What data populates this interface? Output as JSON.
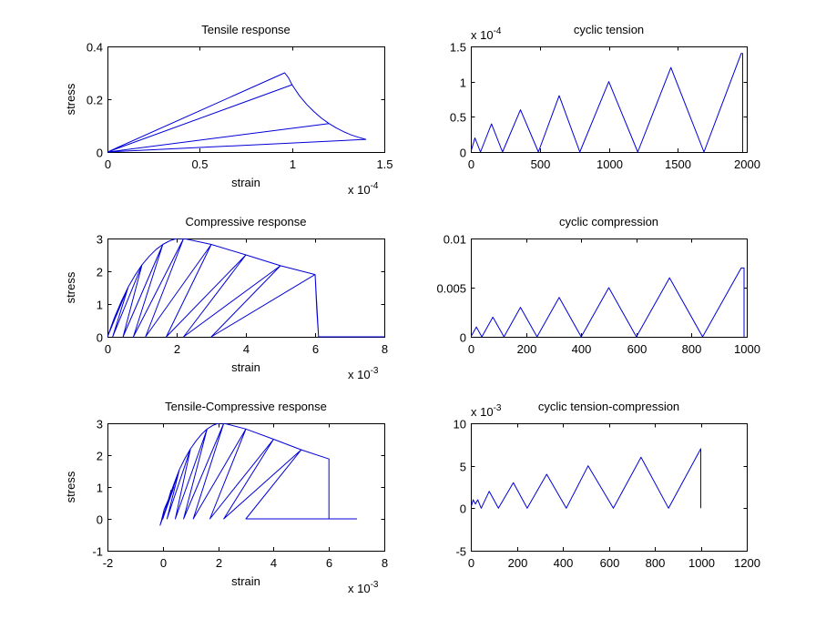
{
  "chart_data": [
    {
      "type": "line",
      "title": "Tensile response",
      "xlabel": "strain",
      "ylabel": "stress",
      "x_scale_label": "x 10",
      "x_scale_exp": "-4",
      "xlim": [
        0,
        1.5
      ],
      "ylim": [
        0,
        0.4
      ],
      "xticks": [
        0,
        0.5,
        1,
        1.5
      ],
      "xtick_labels": [
        "0",
        "0.5",
        "1",
        "1.5"
      ],
      "yticks": [
        0,
        0.2,
        0.4
      ],
      "ytick_labels": [
        "0",
        "0.2",
        "0.4"
      ],
      "series": [
        {
          "x": [
            0,
            0.96,
            0.98,
            1.0,
            1.04,
            1.08,
            1.12,
            1.16,
            1.2,
            1.24,
            1.28,
            1.32,
            1.36,
            1.4,
            0,
            1.0,
            0,
            1.2,
            0,
            1.4,
            0
          ],
          "y": [
            0,
            0.3,
            0.282,
            0.255,
            0.213,
            0.18,
            0.152,
            0.128,
            0.108,
            0.091,
            0.077,
            0.065,
            0.056,
            0.048,
            0,
            0.255,
            0,
            0.108,
            0,
            0.048,
            0
          ]
        }
      ]
    },
    {
      "type": "line",
      "title": "cyclic tension",
      "xlabel": "",
      "ylabel": "",
      "y_scale_label": "x 10",
      "y_scale_exp": "-4",
      "xlim": [
        0,
        2000
      ],
      "ylim": [
        0,
        1.5
      ],
      "xticks": [
        0,
        500,
        1000,
        1500,
        2000
      ],
      "xtick_labels": [
        "0",
        "500",
        "1000",
        "1500",
        "2000"
      ],
      "yticks": [
        0,
        0.5,
        1,
        1.5
      ],
      "ytick_labels": [
        "0",
        "0.5",
        "1",
        "1.5"
      ],
      "series": [
        {
          "x": [
            0,
            30,
            70,
            150,
            230,
            360,
            490,
            640,
            790,
            1000,
            1210,
            1450,
            1690,
            1960,
            1970,
            1970
          ],
          "y": [
            0,
            0.2,
            0,
            0.4,
            0,
            0.6,
            0,
            0.8,
            0,
            1.0,
            0,
            1.2,
            0,
            1.4,
            1.4,
            0
          ]
        }
      ]
    },
    {
      "type": "line",
      "title": "Compressive response",
      "xlabel": "strain",
      "ylabel": "stress",
      "x_scale_label": "x 10",
      "x_scale_exp": "-3",
      "xlim": [
        0,
        8
      ],
      "ylim": [
        0,
        3
      ],
      "xticks": [
        0,
        2,
        4,
        6,
        8
      ],
      "xtick_labels": [
        "0",
        "2",
        "4",
        "6",
        "8"
      ],
      "yticks": [
        0,
        1,
        2,
        3
      ],
      "ytick_labels": [
        "0",
        "1",
        "2",
        "3"
      ],
      "series": [
        {
          "x": [
            0,
            0.2,
            0.4,
            0.6,
            0.8,
            1.0,
            1.2,
            1.4,
            1.6,
            1.8,
            2.0,
            2.2,
            3.0,
            4.0,
            5.0,
            6.0,
            6.05,
            6.1,
            8.0,
            6.1,
            6.0,
            3.0,
            5.0,
            2.2,
            4.0,
            1.7,
            3.0,
            1.1,
            2.2,
            0.75,
            1.6,
            0.45,
            1.0,
            0.15,
            0.6,
            0
          ],
          "y": [
            0,
            0.58,
            1.08,
            1.52,
            1.88,
            2.2,
            2.45,
            2.66,
            2.82,
            2.93,
            3.0,
            3.0,
            2.82,
            2.5,
            2.17,
            1.9,
            0.8,
            0,
            0,
            0,
            1.9,
            0,
            2.17,
            0,
            2.5,
            0,
            2.82,
            0,
            3.0,
            0,
            2.82,
            0,
            2.2,
            0,
            1.52,
            0
          ]
        }
      ]
    },
    {
      "type": "line",
      "title": "cyclic compression",
      "xlabel": "",
      "ylabel": "",
      "xlim": [
        0,
        1000
      ],
      "ylim": [
        0,
        0.01
      ],
      "xticks": [
        0,
        200,
        400,
        600,
        800,
        1000
      ],
      "xtick_labels": [
        "0",
        "200",
        "400",
        "600",
        "800",
        "1000"
      ],
      "yticks": [
        0,
        0.005,
        0.01
      ],
      "ytick_labels": [
        "0",
        "0.005",
        "0.01"
      ],
      "series": [
        {
          "x": [
            0,
            20,
            40,
            80,
            120,
            180,
            240,
            320,
            400,
            500,
            600,
            720,
            840,
            980,
            990,
            990
          ],
          "y": [
            0,
            0.001,
            0,
            0.002,
            0,
            0.003,
            0,
            0.004,
            0,
            0.005,
            0,
            0.006,
            0,
            0.007,
            0.007,
            0
          ]
        }
      ]
    },
    {
      "type": "line",
      "title": "Tensile-Compressive response",
      "xlabel": "strain",
      "ylabel": "stress",
      "x_scale_label": "x 10",
      "x_scale_exp": "-3",
      "xlim": [
        -2,
        8
      ],
      "ylim": [
        -1,
        3
      ],
      "xticks": [
        -2,
        0,
        2,
        4,
        6,
        8
      ],
      "xtick_labels": [
        "-2",
        "0",
        "2",
        "4",
        "6",
        "8"
      ],
      "yticks": [
        -1,
        0,
        1,
        2,
        3
      ],
      "ytick_labels": [
        "-1",
        "0",
        "1",
        "2",
        "3"
      ],
      "series": [
        {
          "x": [
            -0.1,
            -0.05,
            0.05,
            0.2,
            0.4,
            0.6,
            0.8,
            1.0,
            1.2,
            1.4,
            1.6,
            1.8,
            2.0,
            2.2,
            3.0,
            4.0,
            5.0,
            6.0,
            6.0,
            7.0,
            6.0,
            3.0,
            5.0,
            2.2,
            4.0,
            1.7,
            3.0,
            1.1,
            2.2,
            0.75,
            1.6,
            0.45,
            1.0,
            0.15,
            0.6,
            0,
            0.25,
            -0.1,
            -0.1,
            0.4,
            0.08,
            0.3,
            0
          ],
          "y": [
            -0.2,
            -0.05,
            0.3,
            0.6,
            1.1,
            1.55,
            1.9,
            2.2,
            2.45,
            2.66,
            2.82,
            2.93,
            3.0,
            3.0,
            2.82,
            2.5,
            2.17,
            1.88,
            0,
            0,
            0,
            0,
            2.17,
            0,
            2.5,
            0,
            2.82,
            0,
            3.0,
            0,
            2.82,
            0,
            2.2,
            0,
            1.55,
            0,
            0.7,
            -0.2,
            -0.2,
            1.0,
            0.2,
            0.9,
            0
          ]
        }
      ]
    },
    {
      "type": "line",
      "title": "cyclic tension-compression",
      "xlabel": "",
      "ylabel": "",
      "y_scale_label": "x 10",
      "y_scale_exp": "-3",
      "xlim": [
        0,
        1200
      ],
      "ylim": [
        -5,
        10
      ],
      "xticks": [
        0,
        200,
        400,
        600,
        800,
        1000,
        1200
      ],
      "xtick_labels": [
        "0",
        "200",
        "400",
        "600",
        "800",
        "1000",
        "1200"
      ],
      "yticks": [
        -5,
        0,
        5,
        10
      ],
      "ytick_labels": [
        "-5",
        "0",
        "5",
        "10"
      ],
      "series": [
        {
          "x": [
            0,
            10,
            20,
            30,
            45,
            80,
            120,
            185,
            245,
            330,
            415,
            510,
            620,
            740,
            860,
            1000,
            1000
          ],
          "y": [
            0,
            1.0,
            0.5,
            1.0,
            0,
            2.0,
            0,
            3.0,
            0,
            4.0,
            0,
            5.0,
            0,
            6.0,
            0,
            7.0,
            0
          ]
        }
      ]
    }
  ]
}
